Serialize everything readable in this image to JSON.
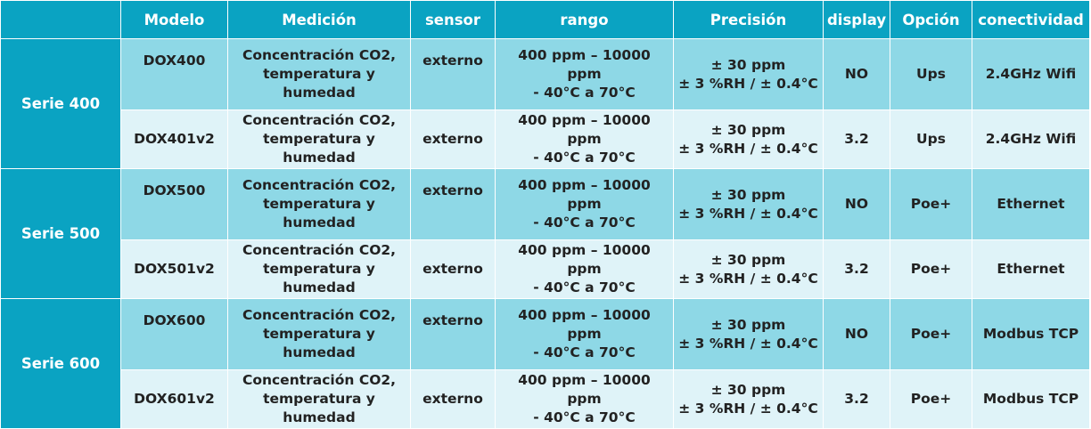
{
  "headers": [
    "",
    "Modelo",
    "Medición",
    "sensor",
    "rango",
    "Precisión",
    "display",
    "Opción",
    "conectividad"
  ],
  "rows": [
    {
      "series": "Serie 400",
      "model": "DOX400",
      "measurement": "Concentración CO2, temperatura y humedad",
      "sensor": "externo",
      "range_line1": "400 ppm – 10000 ppm",
      "range_line2": "- 40°C a 70°C",
      "precision_line1": "± 30 ppm",
      "precision_line2": "± 3 %RH / ± 0.4°C",
      "display": "NO",
      "option": "Ups",
      "connectivity": "2.4GHz Wifi"
    },
    {
      "series": "",
      "model": "DOX401v2",
      "measurement": "Concentración CO2, temperatura y humedad",
      "sensor": "externo",
      "range_line1": "400 ppm – 10000 ppm",
      "range_line2": "- 40°C a 70°C",
      "precision_line1": "± 30 ppm",
      "precision_line2": "± 3 %RH / ± 0.4°C",
      "display": "3.2",
      "option": "Ups",
      "connectivity": "2.4GHz Wifi"
    },
    {
      "series": "Serie 500",
      "model": "DOX500",
      "measurement": "Concentración CO2, temperatura y humedad",
      "sensor": "externo",
      "range_line1": "400 ppm – 10000 ppm",
      "range_line2": "- 40°C a 70°C",
      "precision_line1": "± 30 ppm",
      "precision_line2": "± 3 %RH / ± 0.4°C",
      "display": "NO",
      "option": "Poe+",
      "connectivity": "Ethernet"
    },
    {
      "series": "",
      "model": "DOX501v2",
      "measurement": "Concentración CO2, temperatura y humedad",
      "sensor": "externo",
      "range_line1": "400 ppm – 10000 ppm",
      "range_line2": "- 40°C a 70°C",
      "precision_line1": "± 30 ppm",
      "precision_line2": "± 3 %RH / ± 0.4°C",
      "display": "3.2",
      "option": "Poe+",
      "connectivity": "Ethernet"
    },
    {
      "series": "Serie 600",
      "model": "DOX600",
      "measurement": "Concentración CO2, temperatura y humedad",
      "sensor": "externo",
      "range_line1": "400 ppm – 10000 ppm",
      "range_line2": "- 40°C a 70°C",
      "precision_line1": "± 30 ppm",
      "precision_line2": "± 3 %RH / ± 0.4°C",
      "display": "NO",
      "option": "Poe+",
      "connectivity": "Modbus TCP"
    },
    {
      "series": "",
      "model": "DOX601v2",
      "measurement": "Concentración CO2, temperatura y humedad",
      "sensor": "externo",
      "range_line1": "400 ppm – 10000 ppm",
      "range_line2": "- 40°C a 70°C",
      "precision_line1": "± 30 ppm",
      "precision_line2": "± 3 %RH / ± 0.4°C",
      "display": "3.2",
      "option": "Poe+",
      "connectivity": "Modbus TCP"
    }
  ],
  "colors": {
    "header": "#0aa3c2",
    "row_dark": "#8ed8e6",
    "row_light": "#dff3f8",
    "header_text": "#ffffff"
  }
}
